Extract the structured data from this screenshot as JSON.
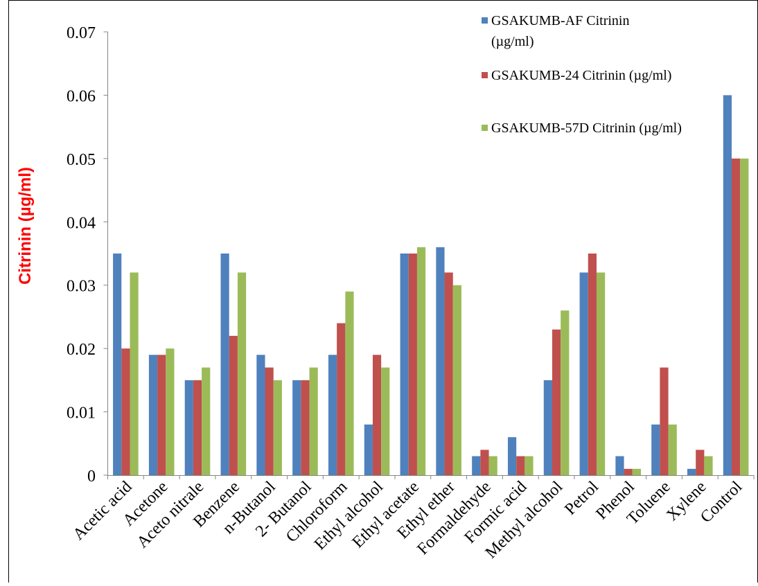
{
  "chart_data": {
    "type": "bar",
    "ylabel": "Citrinin (µg/ml)",
    "ylim": [
      0,
      0.07
    ],
    "yticks": [
      "0",
      "0.01",
      "0.02",
      "0.03",
      "0.04",
      "0.05",
      "0.06",
      "0.07"
    ],
    "grid": false,
    "legend_position": "top-right",
    "categories": [
      "Acetic acid",
      "Acetone",
      "Aceto nitrale",
      "Benzene",
      "n-Butanol",
      "2- Butanol",
      "Chloroform",
      "Ethyl alcohol",
      "Ethyl acetate",
      "Ethyl ether",
      "Formaldehyde",
      "Formic acid",
      "Methyl alcohol",
      "Petrol",
      "Phenol",
      "Toluene",
      "Xylene",
      "Control"
    ],
    "series": [
      {
        "name": "GSAKUMB-AF Citrinin (µg/ml)",
        "color": "#4F81BD",
        "values": [
          0.035,
          0.019,
          0.015,
          0.035,
          0.019,
          0.015,
          0.019,
          0.008,
          0.035,
          0.036,
          0.003,
          0.006,
          0.015,
          0.032,
          0.003,
          0.008,
          0.001,
          0.06
        ]
      },
      {
        "name": "GSAKUMB-24 Citrinin (µg/ml)",
        "color": "#C0504D",
        "values": [
          0.02,
          0.019,
          0.015,
          0.022,
          0.017,
          0.015,
          0.024,
          0.019,
          0.035,
          0.032,
          0.004,
          0.003,
          0.023,
          0.035,
          0.001,
          0.017,
          0.004,
          0.05
        ]
      },
      {
        "name": "GSAKUMB-57D Citrinin (µg/ml)",
        "color": "#9BBB59",
        "values": [
          0.032,
          0.02,
          0.017,
          0.032,
          0.015,
          0.017,
          0.029,
          0.017,
          0.036,
          0.03,
          0.003,
          0.003,
          0.026,
          0.032,
          0.001,
          0.008,
          0.003,
          0.05
        ]
      }
    ],
    "legend_lines": [
      [
        "GSAKUMB-AF Citrinin",
        "(µg/ml)"
      ],
      [
        "GSAKUMB-24 Citrinin (µg/ml)"
      ],
      [
        "GSAKUMB-57D Citrinin (µg/ml)"
      ]
    ]
  },
  "colors": {
    "ylabel": "#FF0000",
    "axis": "#868686",
    "text": "#000000"
  }
}
